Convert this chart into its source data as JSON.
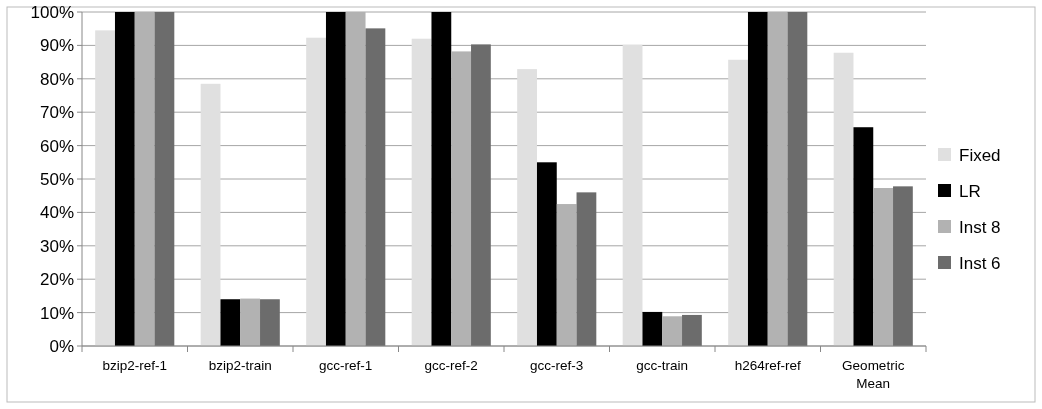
{
  "chart_data": {
    "type": "bar",
    "categories": [
      "bzip2-ref-1",
      "bzip2-train",
      "gcc-ref-1",
      "gcc-ref-2",
      "gcc-ref-3",
      "gcc-train",
      "h264ref-ref",
      "Geometric Mean"
    ],
    "series": [
      {
        "name": "Fixed",
        "color": "#e0e0e0",
        "values": [
          94.5,
          78.5,
          92.3,
          92,
          82.9,
          90.2,
          85.7,
          87.8
        ]
      },
      {
        "name": "LR",
        "color": "#000000",
        "values": [
          100,
          14,
          100,
          100,
          55,
          10.2,
          100,
          65.5
        ]
      },
      {
        "name": "Inst 8",
        "color": "#b2b2b2",
        "values": [
          100,
          14.2,
          100,
          88.2,
          42.5,
          8.9,
          100,
          47.3
        ]
      },
      {
        "name": "Inst 6",
        "color": "#6c6c6c",
        "values": [
          100,
          14,
          95.1,
          90.3,
          46,
          9.3,
          100,
          47.8
        ]
      }
    ],
    "ylim": [
      0,
      100
    ],
    "yticks": [
      {
        "value": 0,
        "label": "0%"
      },
      {
        "value": 10,
        "label": "10%"
      },
      {
        "value": 20,
        "label": "20%"
      },
      {
        "value": 30,
        "label": "30%"
      },
      {
        "value": 40,
        "label": "40%"
      },
      {
        "value": 50,
        "label": "50%"
      },
      {
        "value": 60,
        "label": "60%"
      },
      {
        "value": 70,
        "label": "70%"
      },
      {
        "value": 80,
        "label": "80%"
      },
      {
        "value": 90,
        "label": "90%"
      },
      {
        "value": 100,
        "label": "100%"
      }
    ],
    "grid": "y",
    "legend": "right"
  }
}
